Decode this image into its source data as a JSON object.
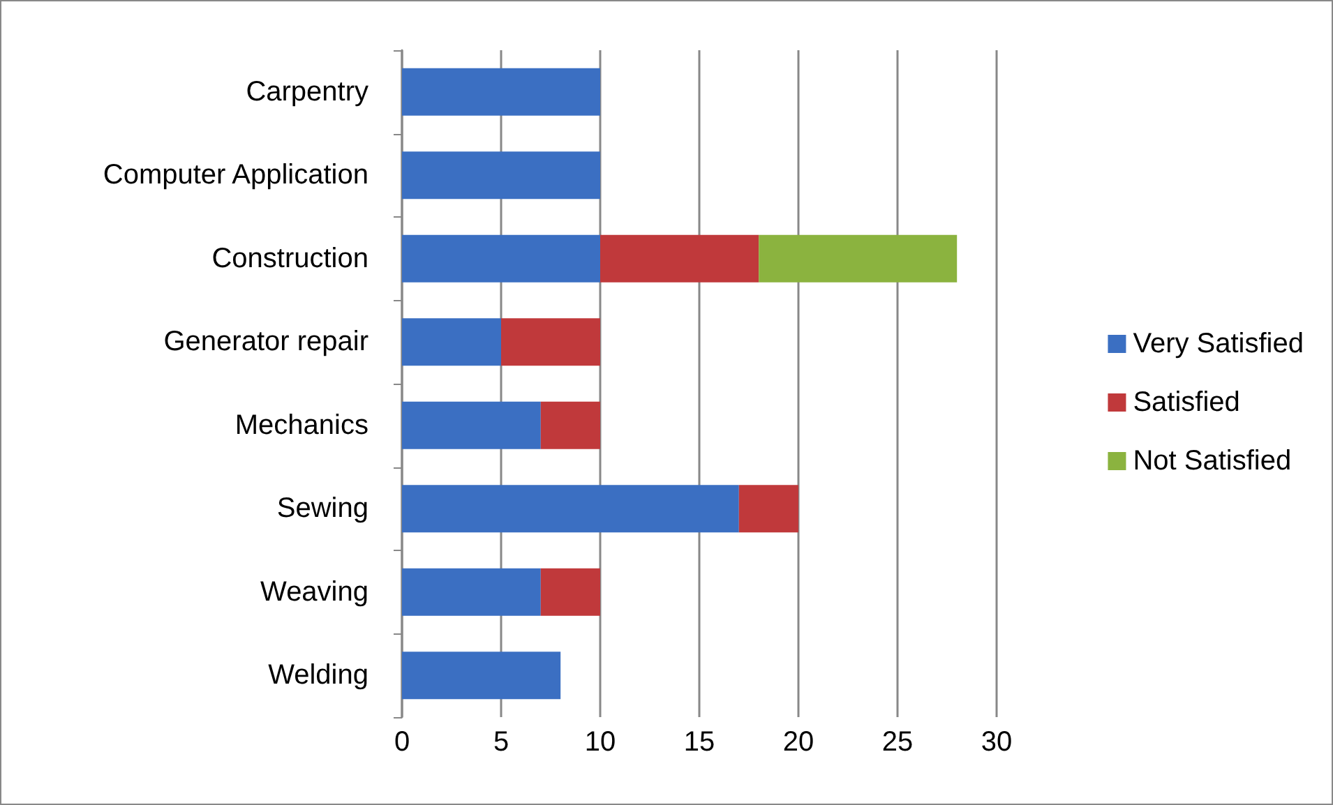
{
  "chart_data": {
    "type": "bar",
    "orientation": "horizontal",
    "stacked": true,
    "categories": [
      "Carpentry",
      "Computer Application",
      "Construction",
      "Generator repair",
      "Mechanics",
      "Sewing",
      "Weaving",
      "Welding"
    ],
    "series": [
      {
        "name": "Very Satisfied",
        "color": "#3b6fc2",
        "values": [
          10,
          10,
          10,
          5,
          7,
          17,
          7,
          8
        ]
      },
      {
        "name": "Satisfied",
        "color": "#c0393b",
        "values": [
          null,
          null,
          8,
          5,
          3,
          3,
          3,
          null
        ]
      },
      {
        "name": "Not Satisfied",
        "color": "#8bb33f",
        "values": [
          null,
          null,
          10,
          null,
          null,
          null,
          null,
          null
        ]
      }
    ],
    "xlim": [
      0,
      30
    ],
    "xticks": [
      0,
      5,
      10,
      15,
      20,
      25,
      30
    ],
    "grid": "x",
    "legend": "right"
  }
}
